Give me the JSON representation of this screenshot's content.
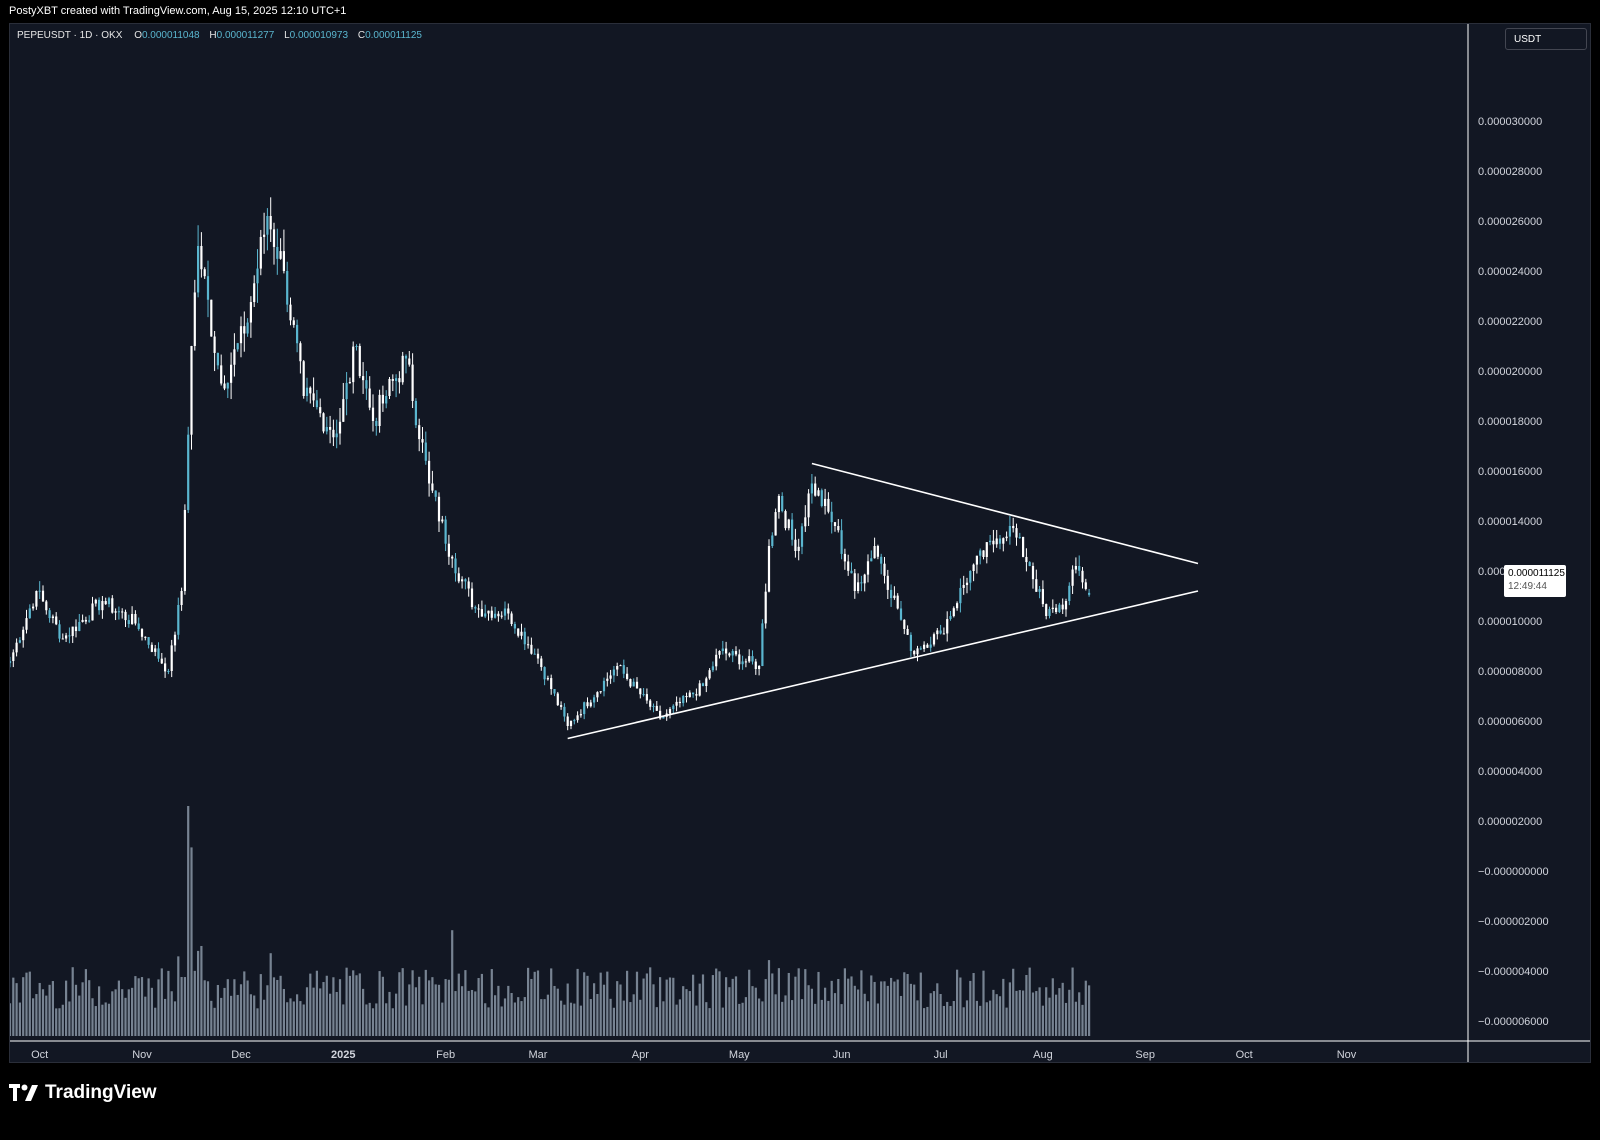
{
  "header": {
    "text": "PostyXBT created with TradingView.com, Aug 15, 2025 12:10 UTC+1"
  },
  "legend": {
    "symbol": "PEPEUSDT · 1D · OKX",
    "o_label": "O",
    "o_value": "0.000011048",
    "h_label": "H",
    "h_value": "0.000011277",
    "l_label": "L",
    "l_value": "0.000010973",
    "c_label": "C",
    "c_value": "0.000011125"
  },
  "currency": "USDT",
  "last_price": {
    "value": "0.000011125",
    "countdown": "12:49:44"
  },
  "brand": {
    "name": "TradingView",
    "logo_icon": "tradingview-logo-icon"
  },
  "colors": {
    "background": "#121723",
    "candle": "#ffffff",
    "candle_alt": "#5ab6cf",
    "trendline": "#ffffff",
    "volume": "#8a96a6"
  },
  "chart_data": {
    "type": "candlestick",
    "symbol": "PEPEUSDT",
    "interval": "1D",
    "exchange": "OKX",
    "y_axis": {
      "ticks": [
        "0.000030000",
        "0.000028000",
        "0.000026000",
        "0.000024000",
        "0.000022000",
        "0.000020000",
        "0.000018000",
        "0.000016000",
        "0.000014000",
        "0.000012000",
        "0.000010000",
        "0.000008000",
        "0.000006000",
        "0.000004000",
        "0.000002000",
        "−0.000000000",
        "−0.000002000",
        "−0.000004000",
        "−0.000006000"
      ],
      "tick_values": [
        3e-05,
        2.8e-05,
        2.6e-05,
        2.4e-05,
        2.2e-05,
        2e-05,
        1.8e-05,
        1.6e-05,
        1.4e-05,
        1.2e-05,
        1e-05,
        8e-06,
        6e-06,
        4e-06,
        2e-06,
        0,
        -2e-06,
        -4e-06,
        -6e-06
      ]
    },
    "x_axis": {
      "labels": [
        {
          "text": "Oct",
          "date": "2024-10-01"
        },
        {
          "text": "Nov",
          "date": "2024-11-01"
        },
        {
          "text": "Dec",
          "date": "2024-12-01"
        },
        {
          "text": "2025",
          "date": "2025-01-01",
          "bold": true
        },
        {
          "text": "Feb",
          "date": "2025-02-01"
        },
        {
          "text": "Mar",
          "date": "2025-03-01"
        },
        {
          "text": "Apr",
          "date": "2025-04-01"
        },
        {
          "text": "May",
          "date": "2025-05-01"
        },
        {
          "text": "Jun",
          "date": "2025-06-01"
        },
        {
          "text": "Jul",
          "date": "2025-07-01"
        },
        {
          "text": "Aug",
          "date": "2025-08-01"
        },
        {
          "text": "Sep",
          "date": "2025-09-01"
        },
        {
          "text": "Oct",
          "date": "2025-10-01"
        },
        {
          "text": "Nov",
          "date": "2025-11-01"
        }
      ]
    },
    "price_anchors": [
      {
        "date": "2024-09-22",
        "close": 8.4e-06
      },
      {
        "date": "2024-09-30",
        "close": 1.12e-05
      },
      {
        "date": "2024-10-08",
        "close": 9.3e-06
      },
      {
        "date": "2024-10-20",
        "close": 1.08e-05
      },
      {
        "date": "2024-10-30",
        "close": 9.9e-06
      },
      {
        "date": "2024-11-09",
        "close": 8e-06
      },
      {
        "date": "2024-11-13",
        "close": 1.12e-05
      },
      {
        "date": "2024-11-16",
        "close": 2.1e-05
      },
      {
        "date": "2024-11-18",
        "close": 2.5e-05
      },
      {
        "date": "2024-11-25",
        "close": 1.95e-05
      },
      {
        "date": "2024-12-02",
        "close": 2.15e-05
      },
      {
        "date": "2024-12-09",
        "close": 2.62e-05
      },
      {
        "date": "2024-12-14",
        "close": 2.4e-05
      },
      {
        "date": "2024-12-20",
        "close": 1.9e-05
      },
      {
        "date": "2024-12-30",
        "close": 1.75e-05
      },
      {
        "date": "2025-01-05",
        "close": 2.1e-05
      },
      {
        "date": "2025-01-10",
        "close": 1.8e-05
      },
      {
        "date": "2025-01-14",
        "close": 1.9e-05
      },
      {
        "date": "2025-01-20",
        "close": 2.05e-05
      },
      {
        "date": "2025-01-27",
        "close": 1.55e-05
      },
      {
        "date": "2025-02-03",
        "close": 1.25e-05
      },
      {
        "date": "2025-02-10",
        "close": 1.05e-05
      },
      {
        "date": "2025-02-20",
        "close": 1.03e-05
      },
      {
        "date": "2025-03-01",
        "close": 8.5e-06
      },
      {
        "date": "2025-03-10",
        "close": 5.8e-06
      },
      {
        "date": "2025-03-25",
        "close": 8.2e-06
      },
      {
        "date": "2025-04-07",
        "close": 6.1e-06
      },
      {
        "date": "2025-04-20",
        "close": 7.4e-06
      },
      {
        "date": "2025-04-25",
        "close": 8.8e-06
      },
      {
        "date": "2025-05-07",
        "close": 8.2e-06
      },
      {
        "date": "2025-05-10",
        "close": 1.3e-05
      },
      {
        "date": "2025-05-13",
        "close": 1.5e-05
      },
      {
        "date": "2025-05-18",
        "close": 1.28e-05
      },
      {
        "date": "2025-05-23",
        "close": 1.55e-05
      },
      {
        "date": "2025-05-30",
        "close": 1.38e-05
      },
      {
        "date": "2025-06-05",
        "close": 1.12e-05
      },
      {
        "date": "2025-06-11",
        "close": 1.3e-05
      },
      {
        "date": "2025-06-18",
        "close": 1.05e-05
      },
      {
        "date": "2025-06-22",
        "close": 8.8e-06
      },
      {
        "date": "2025-07-01",
        "close": 9.5e-06
      },
      {
        "date": "2025-07-10",
        "close": 1.2e-05
      },
      {
        "date": "2025-07-18",
        "close": 1.33e-05
      },
      {
        "date": "2025-07-22",
        "close": 1.38e-05
      },
      {
        "date": "2025-07-28",
        "close": 1.22e-05
      },
      {
        "date": "2025-08-02",
        "close": 1.02e-05
      },
      {
        "date": "2025-08-08",
        "close": 1.08e-05
      },
      {
        "date": "2025-08-11",
        "close": 1.22e-05
      },
      {
        "date": "2025-08-15",
        "close": 1.1125e-05
      }
    ],
    "last_candle": {
      "date": "2025-08-15",
      "open": 1.1048e-05,
      "high": 1.1277e-05,
      "low": 1.0973e-05,
      "close": 1.1125e-05
    },
    "trendlines": [
      {
        "name": "ascending-support",
        "from": {
          "date": "2025-03-10",
          "price": 5.3e-06
        },
        "to": {
          "date": "2025-09-17",
          "price": 1.12e-05
        }
      },
      {
        "name": "descending-resistance",
        "from": {
          "date": "2025-05-23",
          "price": 1.63e-05
        },
        "to": {
          "date": "2025-09-17",
          "price": 1.23e-05
        }
      }
    ],
    "volume": {
      "description": "relative daily volume; largest spike mid-November 2024",
      "spikes": [
        {
          "date": "2024-11-15",
          "relative": 1.0
        },
        {
          "date": "2024-11-16",
          "relative": 0.82
        },
        {
          "date": "2025-02-03",
          "relative": 0.46
        },
        {
          "date": "2024-12-10",
          "relative": 0.36
        },
        {
          "date": "2025-05-10",
          "relative": 0.33
        }
      ]
    },
    "grid": false
  }
}
